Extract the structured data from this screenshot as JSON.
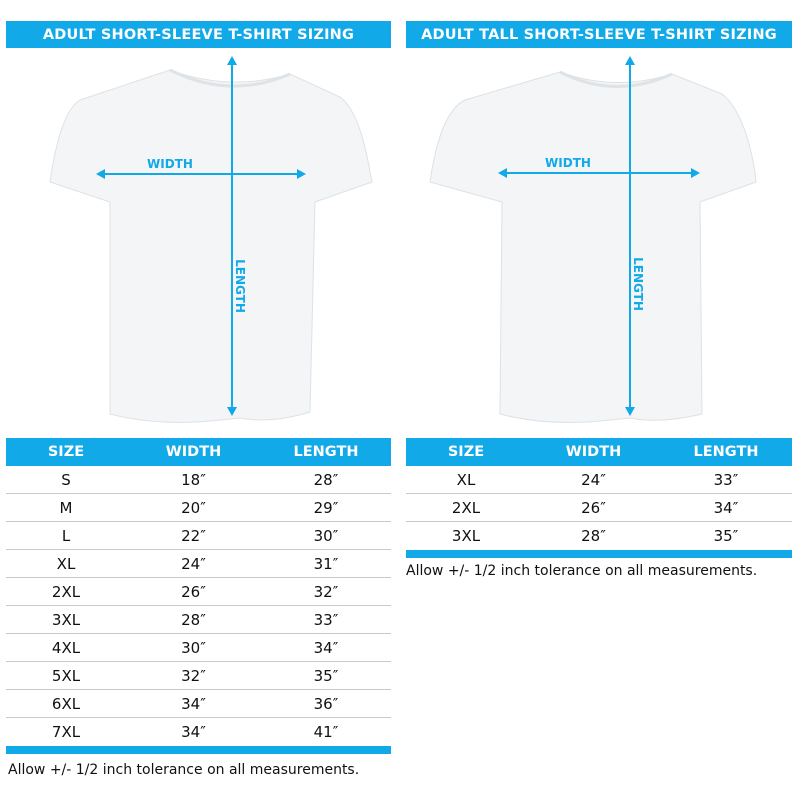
{
  "accent": "#12a9e9",
  "left": {
    "title": "ADULT SHORT-SLEEVE T-SHIRT SIZING",
    "width_label": "WIDTH",
    "length_label": "LENGTH",
    "headers": [
      "SIZE",
      "WIDTH",
      "LENGTH"
    ],
    "rows": [
      [
        "S",
        "18″",
        "28″"
      ],
      [
        "M",
        "20″",
        "29″"
      ],
      [
        "L",
        "22″",
        "30″"
      ],
      [
        "XL",
        "24″",
        "31″"
      ],
      [
        "2XL",
        "26″",
        "32″"
      ],
      [
        "3XL",
        "28″",
        "33″"
      ],
      [
        "4XL",
        "30″",
        "34″"
      ],
      [
        "5XL",
        "32″",
        "35″"
      ],
      [
        "6XL",
        "34″",
        "36″"
      ],
      [
        "7XL",
        "34″",
        "41″"
      ]
    ],
    "note": "Allow +/- 1/2 inch tolerance on all measurements."
  },
  "right": {
    "title": "ADULT TALL SHORT-SLEEVE T-SHIRT SIZING",
    "width_label": "WIDTH",
    "length_label": "LENGTH",
    "headers": [
      "SIZE",
      "WIDTH",
      "LENGTH"
    ],
    "rows": [
      [
        "XL",
        "24″",
        "33″"
      ],
      [
        "2XL",
        "26″",
        "34″"
      ],
      [
        "3XL",
        "28″",
        "35″"
      ]
    ],
    "note": "Allow +/- 1/2 inch tolerance on all measurements."
  }
}
